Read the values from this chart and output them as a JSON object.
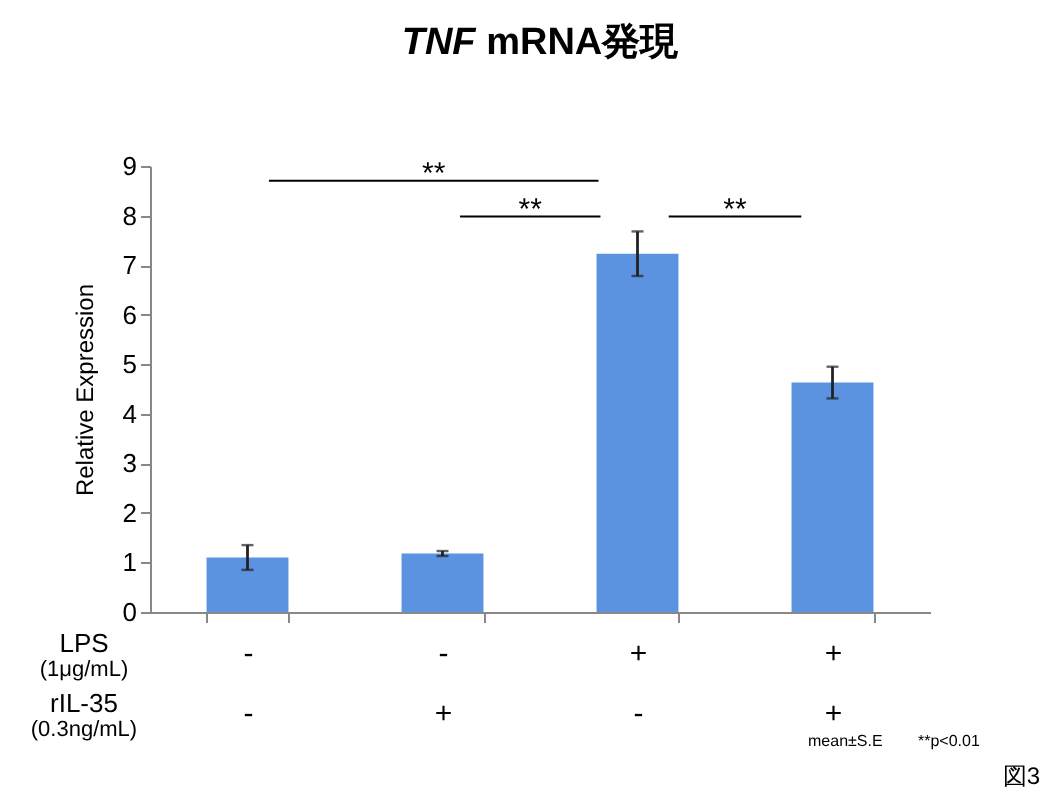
{
  "chart_data": {
    "type": "bar",
    "title": "TNF mRNA発現",
    "ylabel": "Relative Expression",
    "categories": [
      "-\n-",
      "-\n+",
      "+\n-",
      "+\n+"
    ],
    "values": [
      1.1,
      1.18,
      7.23,
      4.63
    ],
    "errors": [
      0.25,
      0.05,
      0.45,
      0.32
    ],
    "color": "#5b93e0",
    "ylim": [
      0,
      9
    ],
    "yticks": [
      0,
      1,
      2,
      3,
      4,
      5,
      6,
      7,
      8,
      9
    ],
    "grid": false,
    "annotations": [
      "**",
      "**",
      "**",
      "LPS",
      "(1μg/mL)",
      "rIL-35",
      "(0.3ng/mL)",
      "mean±S.E",
      "**p<0.01",
      "図3"
    ]
  }
}
